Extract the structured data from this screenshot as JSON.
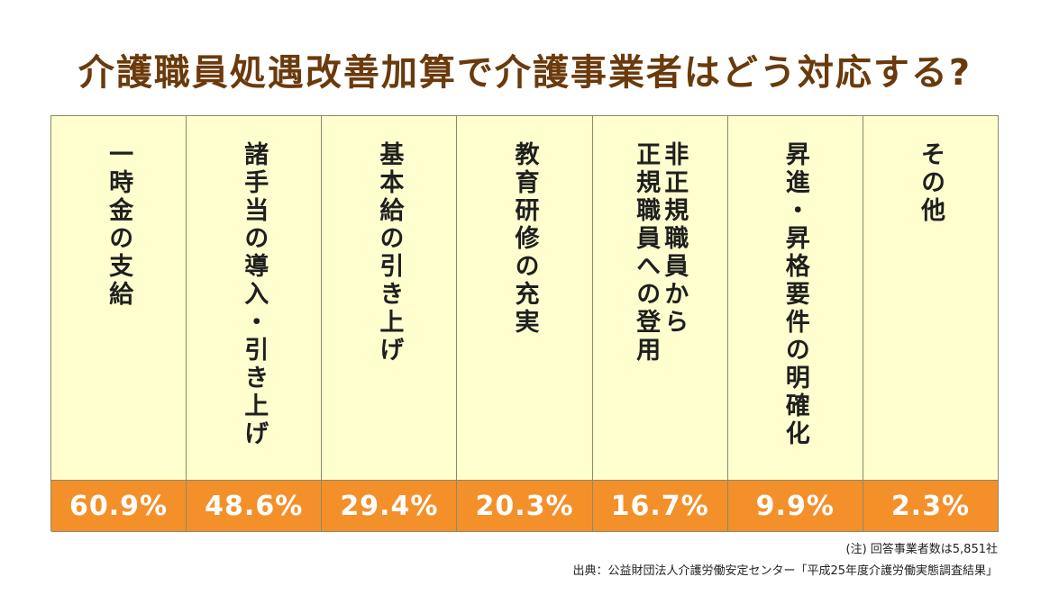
{
  "title": "介護職員処遇改善加算で介護事業者はどう対応する?",
  "chart_data": {
    "type": "table",
    "categories": [
      "一時金の支給",
      "諸手当の導入・引き上げ",
      "基本給の引き上げ",
      "教育研修の充実",
      "非正規職員から\n正規職員への登用",
      "昇進・昇格要件の明確化",
      "その他"
    ],
    "values": [
      60.9,
      48.6,
      29.4,
      20.3,
      16.7,
      9.9,
      2.3
    ],
    "value_labels": [
      "60.9%",
      "48.6%",
      "29.4%",
      "20.3%",
      "16.7%",
      "9.9%",
      "2.3%"
    ],
    "unit": "%"
  },
  "notes": {
    "respondents": "(注) 回答事業者数は5,851社",
    "source": "出典：公益財団法人介護労働安定センター「平成25年度介護労働実態調査結果」"
  },
  "colors": {
    "title": "#6b3a0c",
    "label_bg": "#fefecf",
    "value_bg": "#f4902a",
    "value_text": "#ffffff",
    "border": "#8a8a6a"
  }
}
